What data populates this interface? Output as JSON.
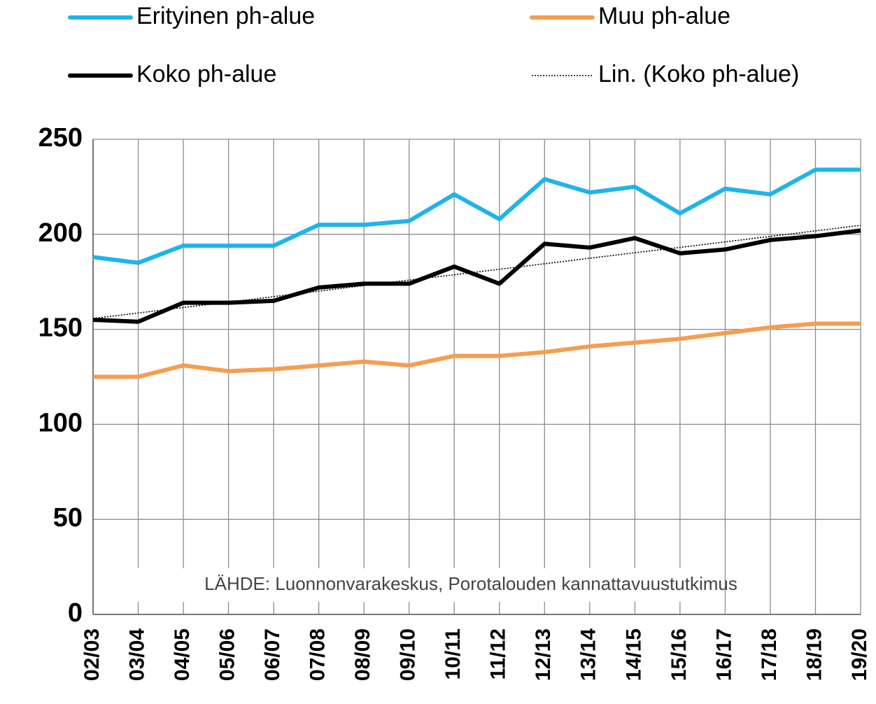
{
  "chart_data": {
    "type": "line",
    "categories": [
      "02/03",
      "03/04",
      "04/05",
      "05/06",
      "06/07",
      "07/08",
      "08/09",
      "09/10",
      "10/11",
      "11/12",
      "12/13",
      "13/14",
      "14/15",
      "15/16",
      "16/17",
      "17/18",
      "18/19",
      "19/20"
    ],
    "series": [
      {
        "name": "Erityinen ph-alue",
        "color": "#1fb4ea",
        "style": "solid",
        "values": [
          188,
          185,
          194,
          194,
          194,
          205,
          205,
          207,
          221,
          208,
          229,
          222,
          225,
          211,
          224,
          221,
          234,
          234
        ]
      },
      {
        "name": "Muu ph-alue",
        "color": "#f59e4f",
        "style": "solid",
        "values": [
          125,
          125,
          131,
          128,
          129,
          131,
          133,
          131,
          136,
          136,
          138,
          141,
          143,
          145,
          148,
          151,
          153,
          153
        ]
      },
      {
        "name": "Koko ph-alue",
        "color": "#000000",
        "style": "solid",
        "values": [
          155,
          154,
          164,
          164,
          165,
          172,
          174,
          174,
          183,
          174,
          195,
          193,
          198,
          190,
          192,
          197,
          199,
          202
        ]
      },
      {
        "name": "Lin. (Koko ph-alue)",
        "color": "#000000",
        "style": "dotted",
        "values": [
          155.7,
          158.6,
          161.5,
          164.3,
          167.2,
          170.1,
          173.0,
          175.9,
          178.7,
          181.6,
          184.5,
          187.4,
          190.3,
          193.1,
          196.0,
          198.9,
          201.8,
          204.7
        ]
      }
    ],
    "ylim": [
      0,
      250
    ],
    "yticks": [
      0,
      50,
      100,
      150,
      200,
      250
    ],
    "grid": true,
    "annotation": "LÄHDE: Luonnonvarakeskus, Porotalouden kannattavuustutkimus"
  }
}
